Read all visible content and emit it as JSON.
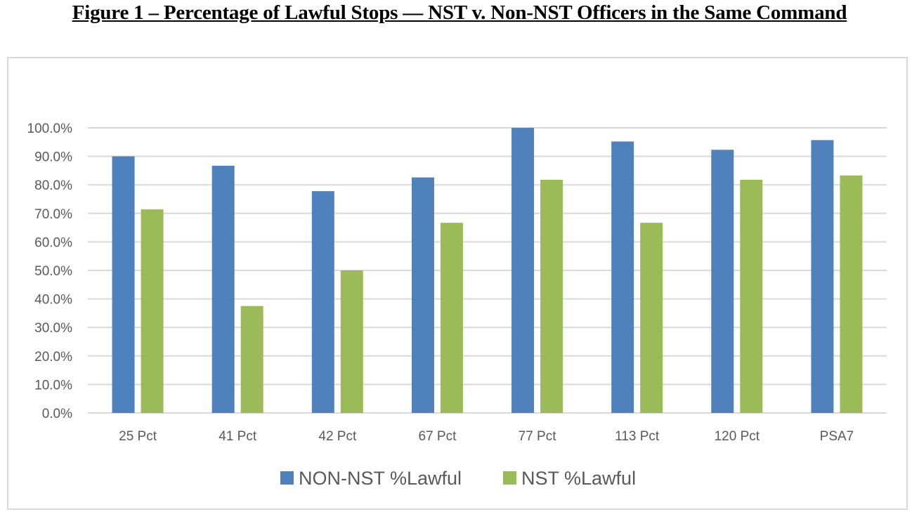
{
  "figure_title": "Figure 1 – Percentage of Lawful Stops — NST v. Non-NST Officers in the Same Command",
  "chart_data": {
    "type": "bar",
    "title": "",
    "xlabel": "",
    "ylabel": "",
    "categories": [
      "25 Pct",
      "41 Pct",
      "42 Pct",
      "67 Pct",
      "77 Pct",
      "113 Pct",
      "120 Pct",
      "PSA7"
    ],
    "series": [
      {
        "name": "NON-NST %Lawful",
        "color": "#4f81bd",
        "values": [
          90.0,
          86.7,
          77.8,
          82.6,
          100.0,
          95.2,
          92.3,
          95.7
        ]
      },
      {
        "name": "NST %Lawful",
        "color": "#9bbb59",
        "values": [
          71.4,
          37.5,
          50.0,
          66.7,
          81.8,
          66.7,
          81.8,
          83.3
        ]
      }
    ],
    "ylim": [
      0,
      100
    ],
    "ytick_step": 10,
    "ytick_labels": [
      "0.0%",
      "10.0%",
      "20.0%",
      "30.0%",
      "40.0%",
      "50.0%",
      "60.0%",
      "70.0%",
      "80.0%",
      "90.0%",
      "100.0%"
    ],
    "grid": true,
    "gridline_color": "#d9d9d9",
    "legend_position": "bottom"
  }
}
